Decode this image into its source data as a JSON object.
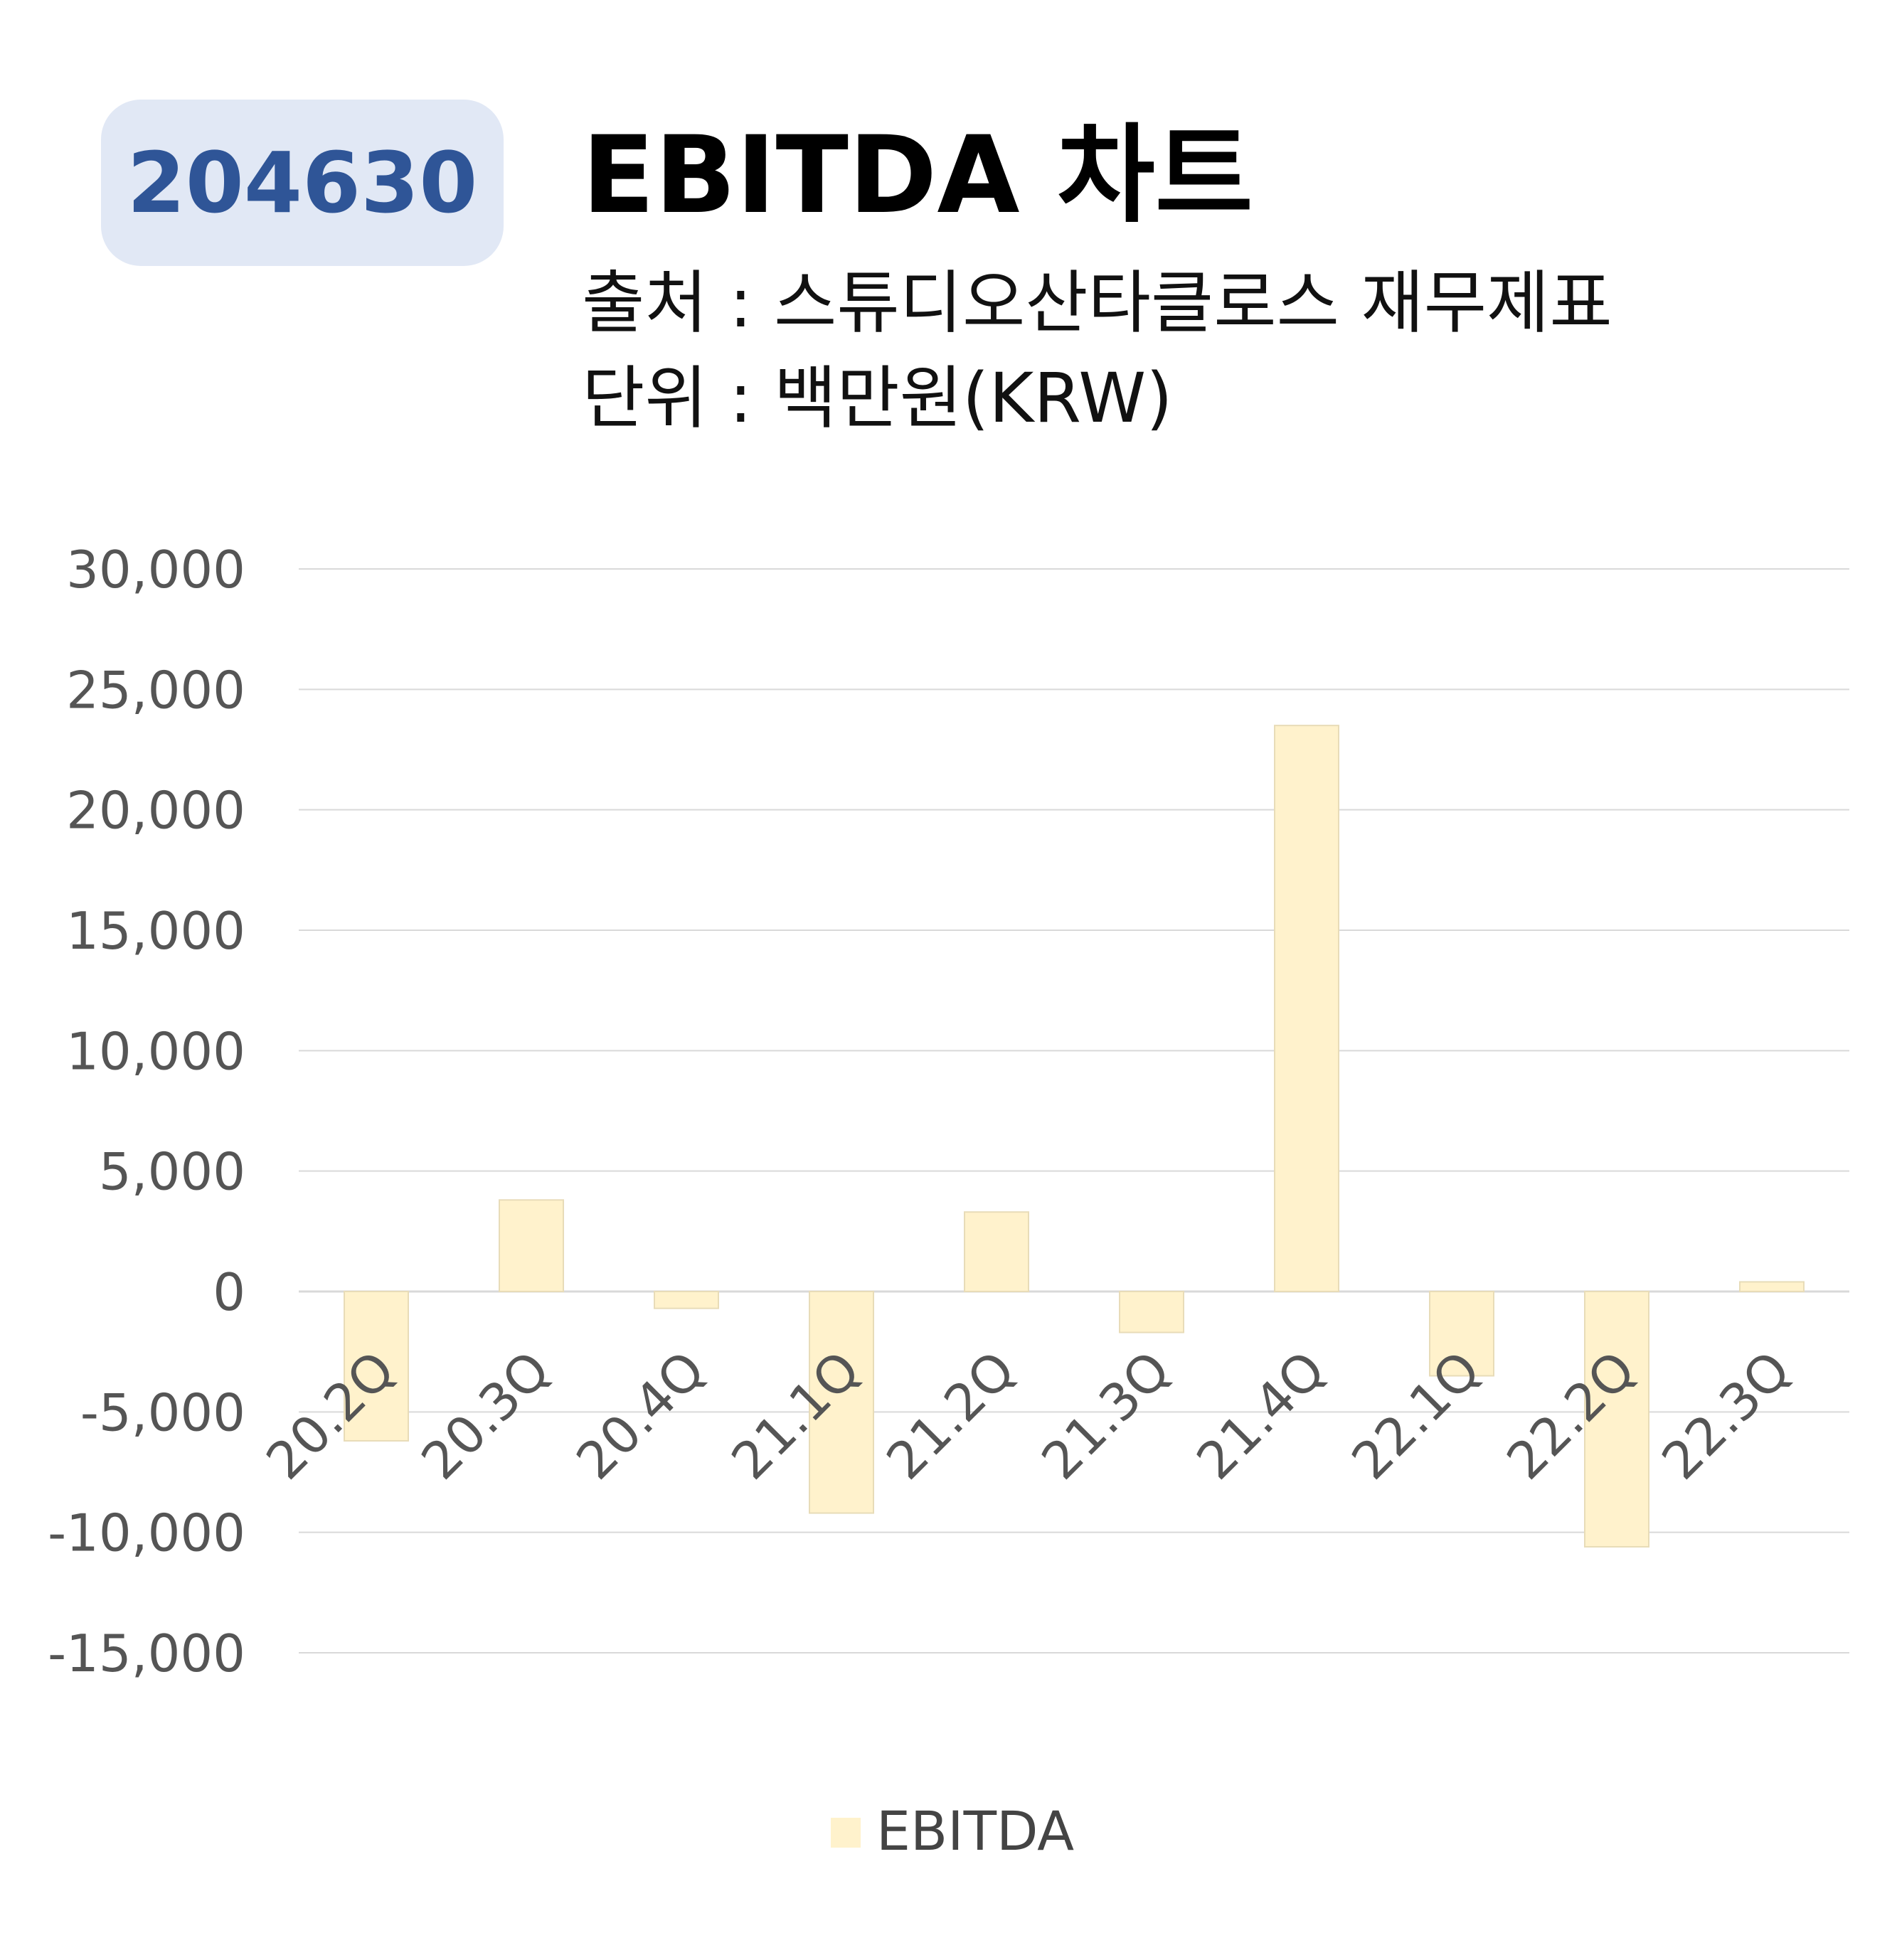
{
  "header": {
    "code": "204630",
    "title": "EBITDA 차트",
    "source": "출처 : 스튜디오산타클로스 재무제표",
    "unit": "단위 : 백만원(KRW)"
  },
  "colors": {
    "bar": "#fff2cc",
    "bar_edge": "#e8dcb8",
    "grid": "#d9d9d9",
    "badge_bg": "#e1e8f5",
    "badge_text": "#2f5597"
  },
  "chart_data": {
    "type": "bar",
    "categories": [
      "20.2Q",
      "20.3Q",
      "20.4Q",
      "21.1Q",
      "21.2Q",
      "21.3Q",
      "21.4Q",
      "22.1Q",
      "22.2Q",
      "22.3Q"
    ],
    "series": [
      {
        "name": "EBITDA",
        "values": [
          -6200,
          3800,
          -700,
          -9200,
          3300,
          -1700,
          23500,
          -3500,
          -10600,
          400
        ]
      }
    ],
    "ylim": [
      -15000,
      30000
    ],
    "yticks": [
      30000,
      25000,
      20000,
      15000,
      10000,
      5000,
      0,
      -5000,
      -10000,
      -15000
    ],
    "ytick_labels": [
      "30,000",
      "25,000",
      "20,000",
      "15,000",
      "10,000",
      "5,000",
      "0",
      "-5,000",
      "-10,000",
      "-15,000"
    ],
    "grid": true,
    "legend": "bottom"
  }
}
